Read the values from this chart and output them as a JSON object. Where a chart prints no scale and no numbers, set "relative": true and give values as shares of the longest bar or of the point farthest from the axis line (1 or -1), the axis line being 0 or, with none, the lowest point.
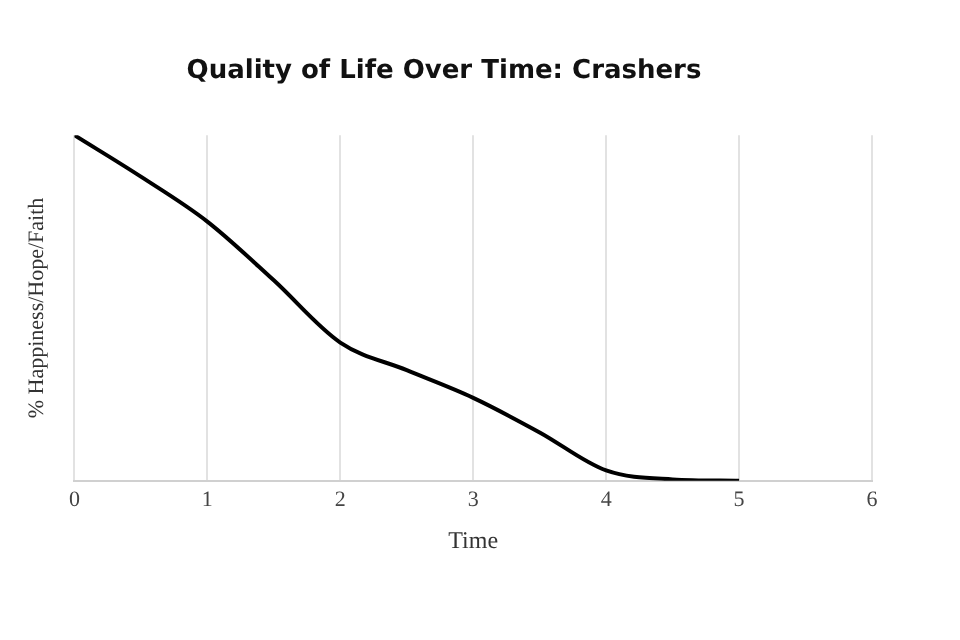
{
  "chart_data": {
    "type": "line",
    "title": "Quality of Life Over Time: Crashers",
    "xlabel": "Time",
    "ylabel": "% Happiness/Hope/Faith",
    "relative": true,
    "x": [
      0,
      0.5,
      1,
      1.5,
      2,
      2.5,
      3,
      3.5,
      4,
      4.5,
      5
    ],
    "series": [
      {
        "color": "#000000",
        "values": [
          1,
          0.88,
          0.75,
          0.58,
          0.4,
          0.32,
          0.24,
          0.14,
          0.03,
          0.004,
          0
        ]
      }
    ],
    "xlim": [
      0,
      6
    ],
    "xticks": [
      0,
      1,
      2,
      3,
      4,
      5,
      6
    ],
    "grid": "x",
    "legend": false,
    "marker": "none",
    "line_style": "solid"
  }
}
